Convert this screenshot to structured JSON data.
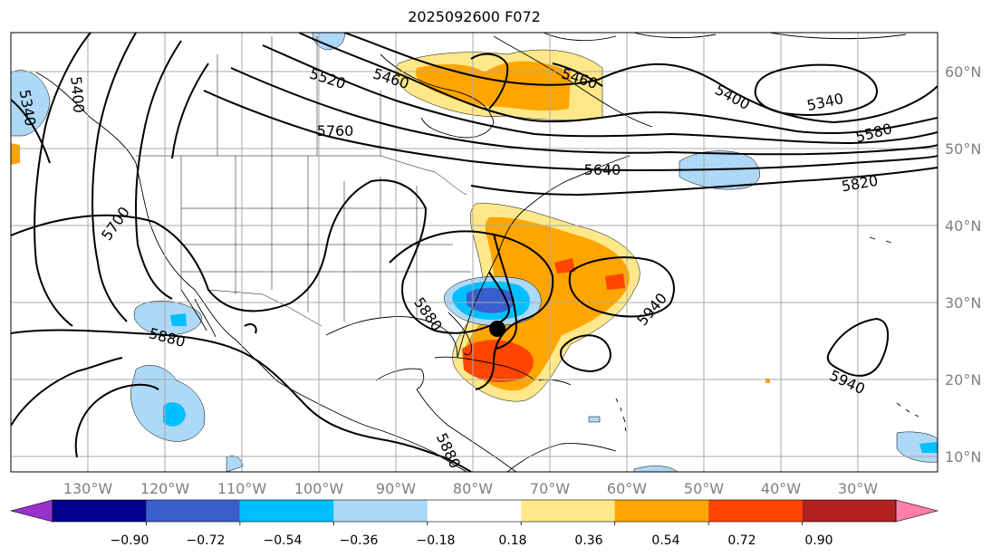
{
  "title": "2025092600 F072",
  "map": {
    "lon_labels": [
      "130°W",
      "120°W",
      "110°W",
      "100°W",
      "90°W",
      "80°W",
      "70°W",
      "60°W",
      "50°W",
      "40°W",
      "30°W"
    ],
    "lat_labels": [
      "60°N",
      "50°N",
      "40°N",
      "30°N",
      "20°N",
      "10°N"
    ],
    "contour_labels": [
      "5460",
      "5520",
      "5460",
      "5400",
      "5340",
      "5580",
      "5760",
      "5640",
      "5820",
      "5400",
      "5340",
      "5700",
      "5880",
      "5880",
      "5940",
      "5940",
      "5880"
    ],
    "colors": {
      "contour": "#000000",
      "gridline": "#a9a9a9",
      "coastline": "#000000"
    }
  },
  "colorbar": {
    "ticks": [
      "−0.90",
      "−0.72",
      "−0.54",
      "−0.36",
      "−0.18",
      "0.18",
      "0.36",
      "0.54",
      "0.72",
      "0.90"
    ],
    "colors": [
      "#9932cc",
      "#00008b",
      "#3a5fcd",
      "#00bfff",
      "#add8f6",
      "#ffffff",
      "#ffe88a",
      "#ffa500",
      "#ff4500",
      "#b22222",
      "#ff7fa8"
    ]
  }
}
